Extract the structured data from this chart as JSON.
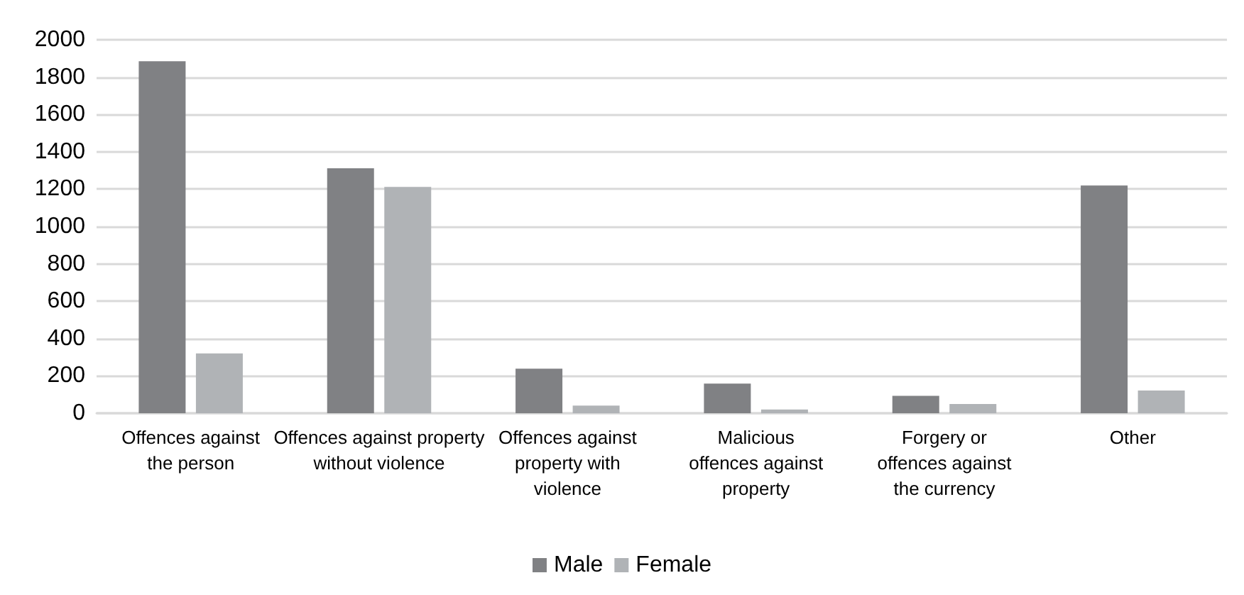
{
  "chart_data": {
    "type": "bar",
    "categories": [
      "Offences against\nthe person",
      "Offences against property\nwithout violence",
      "Offences against\nproperty with\nviolence",
      "Malicious\noffences against\nproperty",
      "Forgery or\noffences against\nthe currency",
      "Other"
    ],
    "series": [
      {
        "name": "Male",
        "color": "#808184",
        "values": [
          1885,
          1312,
          239,
          159,
          93,
          1220
        ]
      },
      {
        "name": "Female",
        "color": "#b0b3b6",
        "values": [
          320,
          1212,
          41,
          20,
          49,
          122
        ]
      }
    ],
    "ylim": [
      0,
      2000
    ],
    "yticks": [
      0,
      200,
      400,
      600,
      800,
      1000,
      1200,
      1400,
      1600,
      1800,
      2000
    ],
    "grid": "y",
    "legend": "bottom"
  }
}
